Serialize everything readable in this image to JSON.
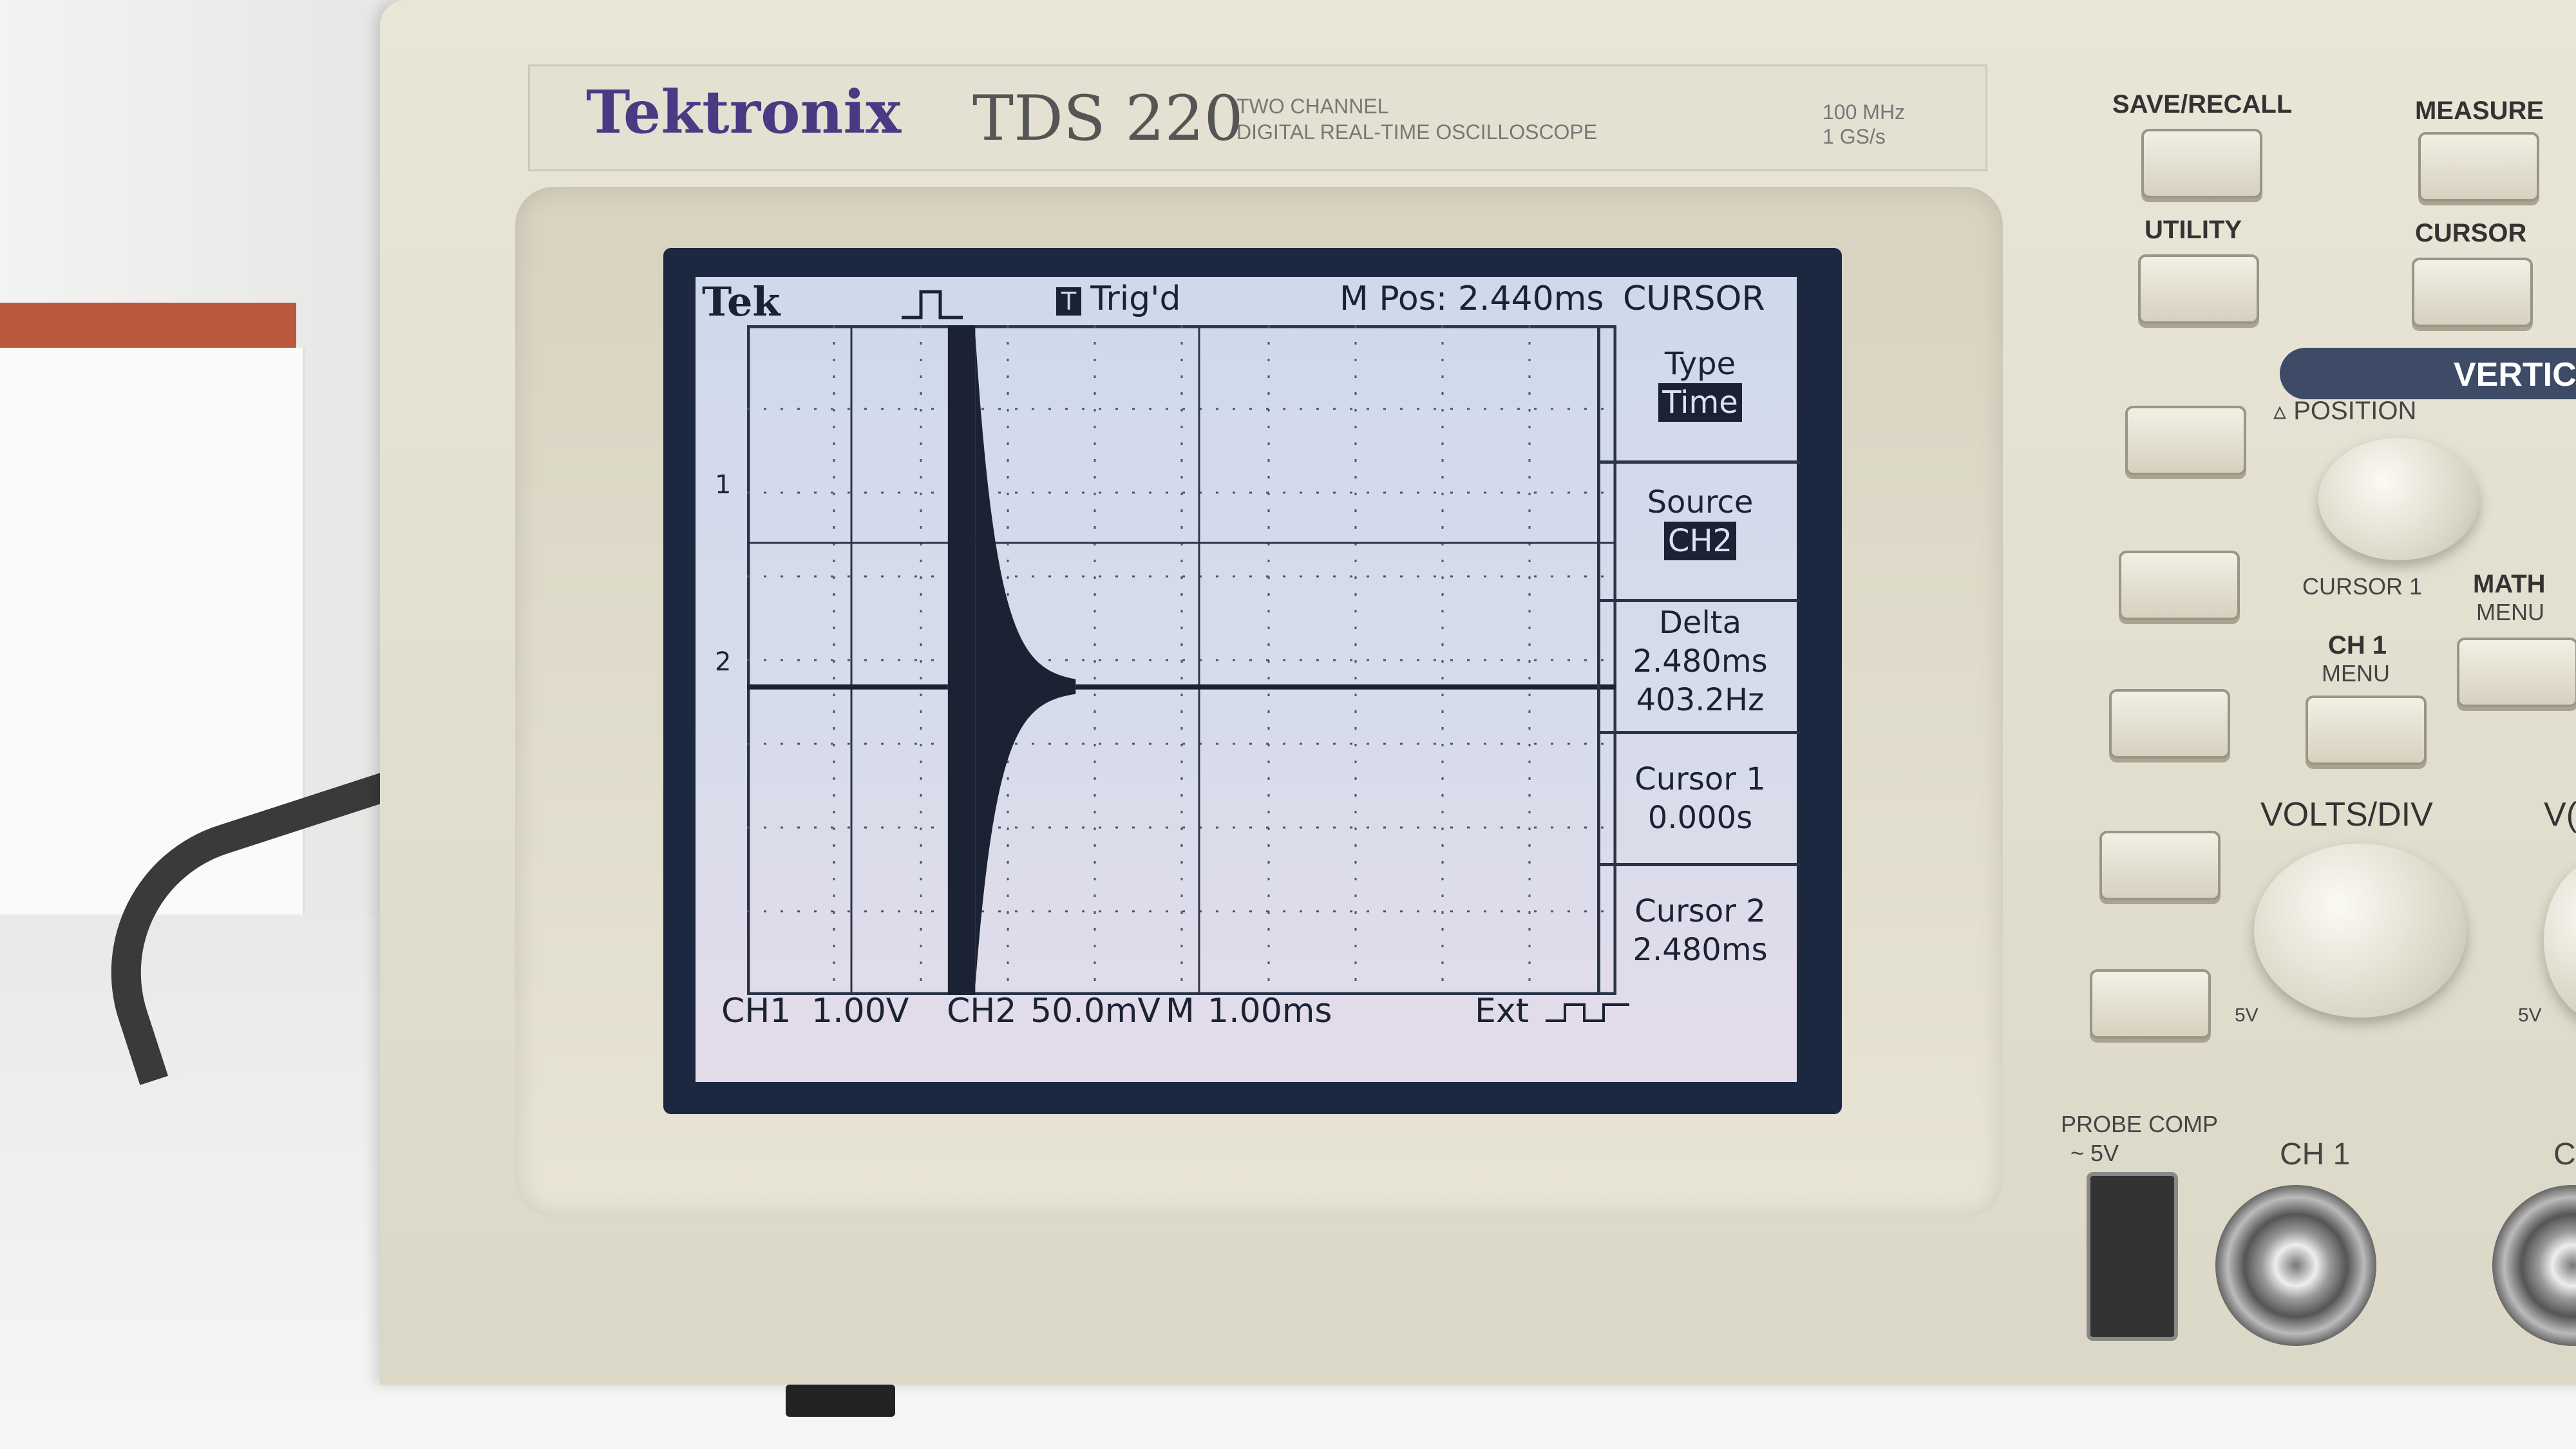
{
  "device": {
    "brand": "Tektronix",
    "model": "TDS 220",
    "subtitle_line1": "TWO CHANNEL",
    "subtitle_line2": "DIGITAL REAL-TIME OSCILLOSCOPE",
    "spec_line1": "100 MHz",
    "spec_line2": "1 GS/s"
  },
  "screen": {
    "tek": "Tek",
    "trig_box": "T",
    "trig_status": "Trig'd",
    "m_pos": "M Pos: 2.440ms",
    "menu_title": "CURSOR",
    "marker_1": "1",
    "marker_2": "2",
    "bottom": {
      "ch1": "CH1",
      "ch1_scale": "1.00V",
      "ch2": "CH2",
      "ch2_scale": "50.0mV",
      "m": "M",
      "m_scale": "1.00ms",
      "ext": "Ext"
    },
    "menu": {
      "type_label": "Type",
      "type_value": "Time",
      "source_label": "Source",
      "source_value": "CH2",
      "delta_label": "Delta",
      "delta_time": "2.480ms",
      "delta_freq": "403.2Hz",
      "cursor1_label": "Cursor 1",
      "cursor1_value": "0.000s",
      "cursor2_label": "Cursor 2",
      "cursor2_value": "2.480ms"
    }
  },
  "controls": {
    "save_recall": "SAVE/RECALL",
    "measure": "MEASURE",
    "utility": "UTILITY",
    "cursor": "CURSOR",
    "vertical": "VERTIC",
    "position": "POSITION",
    "cursor1": "CURSOR 1",
    "math": "MATH",
    "math_menu": "MENU",
    "ch1": "CH 1",
    "ch1_menu": "MENU",
    "volts_div": "VOLTS/DIV",
    "volts_div2": "V(",
    "five_v": "5V",
    "probe_comp": "PROBE COMP",
    "probe_comp_sub": "~ 5V",
    "ch1_input": "CH 1",
    "ch2_input_partial": "C"
  },
  "waveform": {
    "burst_start_div": 2.2,
    "burst_end_div": 2.5,
    "decay_end_div": 3.6,
    "baseline_level": 0.54
  }
}
